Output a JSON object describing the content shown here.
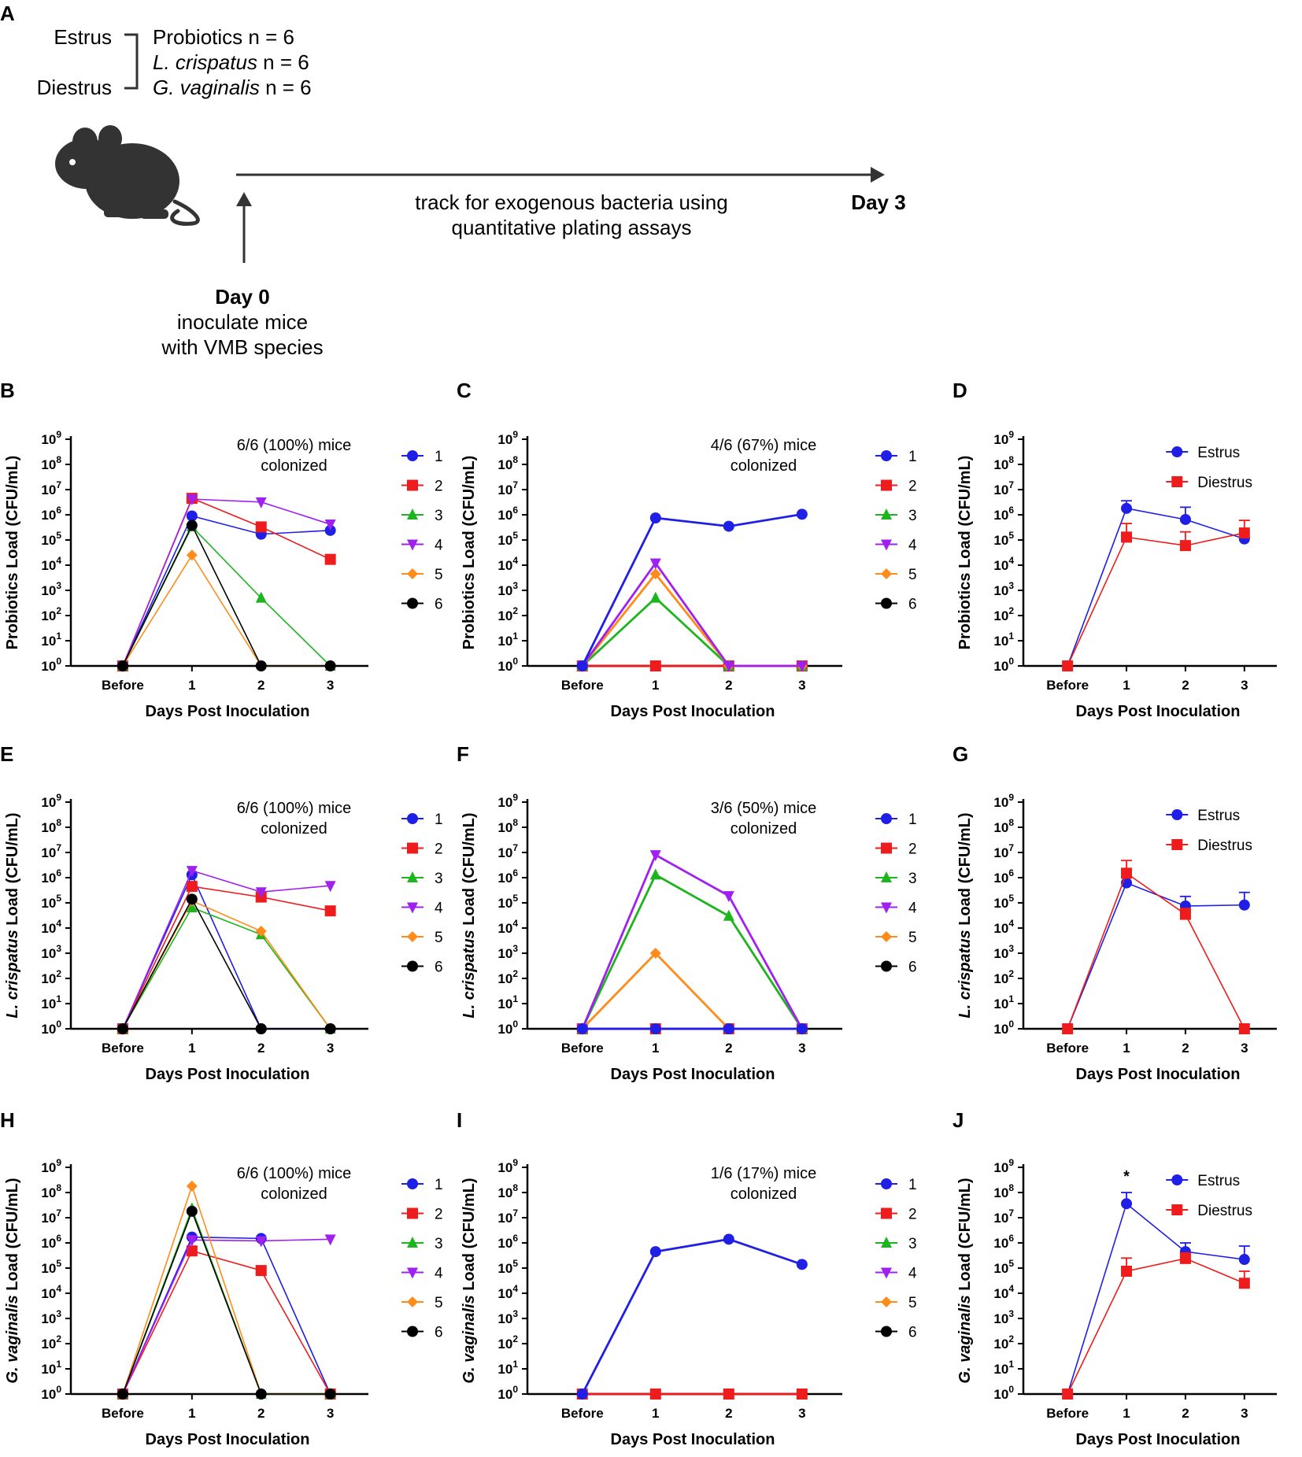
{
  "colors": {
    "s1": "#1f1fe6",
    "s2": "#ee1c1c",
    "s3": "#1db51d",
    "s4": "#a020f0",
    "s5": "#ff8c1a",
    "s6": "#000000",
    "estrus": "#1f1fe6",
    "diestrus": "#ee1c1c",
    "axis": "#000000",
    "mouse": "#333333"
  },
  "schematic": {
    "panel": "A",
    "estrus": "Estrus",
    "diestrus": "Diestrus",
    "group_probiotics": "Probiotics n = 6",
    "group_lcrispatus_species": "L. crispatus",
    "group_lcrispatus_n": " n = 6",
    "group_gvaginalis_species": "G. vaginalis",
    "group_gvaginalis_n": " n = 6",
    "track_line1": "track for exogenous bacteria using",
    "track_line2": "quantitative plating assays",
    "day3": "Day 3",
    "day0": "Day 0",
    "day0_line1": "inoculate mice",
    "day0_line2": "with VMB species",
    "mouse_icon": "mouse-icon"
  },
  "chart_data": [
    {
      "panel": "B",
      "type": "line",
      "ylabel": "Probiotics Load (CFU/mL)",
      "ylabel_italic": "",
      "xlabel": "Days Post Inoculation",
      "categories": [
        "Before",
        "1",
        "2",
        "3"
      ],
      "y_scale": "log10",
      "ylim": [
        1,
        1000000000
      ],
      "annotation": [
        "6/6 (100%) mice",
        "colonized"
      ],
      "legend": [
        "1",
        "2",
        "3",
        "4",
        "5",
        "6"
      ],
      "series": [
        {
          "name": "1",
          "color": "s1",
          "marker": "circle",
          "values": [
            1,
            900000,
            170000,
            240000
          ]
        },
        {
          "name": "2",
          "color": "s2",
          "marker": "square",
          "values": [
            1,
            4500000,
            330000,
            17000
          ]
        },
        {
          "name": "3",
          "color": "s3",
          "marker": "triangle-up",
          "values": [
            1,
            340000,
            500,
            1
          ]
        },
        {
          "name": "4",
          "color": "s4",
          "marker": "triangle-down",
          "values": [
            1,
            4200000,
            3200000,
            420000
          ]
        },
        {
          "name": "5",
          "color": "s5",
          "marker": "diamond",
          "values": [
            1,
            25000,
            1,
            1
          ]
        },
        {
          "name": "6",
          "color": "s6",
          "marker": "circle",
          "values": [
            1,
            380000,
            1,
            1
          ]
        }
      ]
    },
    {
      "panel": "C",
      "type": "line",
      "ylabel": "Probiotics Load (CFU/mL)",
      "ylabel_italic": "",
      "xlabel": "Days Post Inoculation",
      "categories": [
        "Before",
        "1",
        "2",
        "3"
      ],
      "y_scale": "log10",
      "ylim": [
        1,
        1000000000
      ],
      "annotation": [
        "4/6 (67%) mice",
        "colonized"
      ],
      "legend": [
        "1",
        "2",
        "3",
        "4",
        "5",
        "6"
      ],
      "series": [
        {
          "name": "6",
          "color": "s6",
          "marker": "circle",
          "values": [
            1,
            1,
            1,
            1
          ]
        },
        {
          "name": "2",
          "color": "s2",
          "marker": "square",
          "values": [
            1,
            1,
            1,
            1
          ]
        },
        {
          "name": "3",
          "color": "s3",
          "marker": "triangle-up",
          "values": [
            1,
            500,
            1,
            1
          ]
        },
        {
          "name": "5",
          "color": "s5",
          "marker": "diamond",
          "values": [
            1,
            4500,
            1,
            1
          ]
        },
        {
          "name": "4",
          "color": "s4",
          "marker": "triangle-down",
          "values": [
            1,
            12000,
            1,
            1
          ]
        },
        {
          "name": "1",
          "color": "s1",
          "marker": "circle",
          "values": [
            1,
            750000,
            350000,
            1050000
          ]
        }
      ]
    },
    {
      "panel": "D",
      "type": "line",
      "ylabel": "Probiotics Load (CFU/mL)",
      "ylabel_italic": "",
      "xlabel": "Days Post Inoculation",
      "categories": [
        "Before",
        "1",
        "2",
        "3"
      ],
      "y_scale": "log10",
      "ylim": [
        1,
        1000000000
      ],
      "legend": [
        "Estrus",
        "Diestrus"
      ],
      "series": [
        {
          "name": "Estrus",
          "color": "estrus",
          "marker": "circle",
          "values": [
            1,
            1800000,
            650000,
            110000
          ],
          "error_upper": [
            1,
            3600000,
            2000000,
            120000
          ]
        },
        {
          "name": "Diestrus",
          "color": "diestrus",
          "marker": "square",
          "values": [
            1,
            130000,
            60000,
            190000
          ],
          "error_upper": [
            1,
            450000,
            210000,
            600000
          ]
        }
      ]
    },
    {
      "panel": "E",
      "type": "line",
      "ylabel": " Load (CFU/mL)",
      "ylabel_italic": "L. crispatus",
      "xlabel": "Days Post Inoculation",
      "categories": [
        "Before",
        "1",
        "2",
        "3"
      ],
      "y_scale": "log10",
      "ylim": [
        1,
        1000000000
      ],
      "annotation": [
        "6/6 (100%) mice",
        "colonized"
      ],
      "legend": [
        "1",
        "2",
        "3",
        "4",
        "5",
        "6"
      ],
      "series": [
        {
          "name": "1",
          "color": "s1",
          "marker": "circle",
          "values": [
            1,
            1300000,
            1,
            1
          ]
        },
        {
          "name": "2",
          "color": "s2",
          "marker": "square",
          "values": [
            1,
            450000,
            170000,
            48000
          ]
        },
        {
          "name": "3",
          "color": "s3",
          "marker": "triangle-up",
          "values": [
            1,
            65000,
            5500,
            1
          ]
        },
        {
          "name": "4",
          "color": "s4",
          "marker": "triangle-down",
          "values": [
            1,
            1900000,
            270000,
            480000
          ]
        },
        {
          "name": "5",
          "color": "s5",
          "marker": "diamond",
          "values": [
            1,
            120000,
            7500,
            1
          ]
        },
        {
          "name": "6",
          "color": "s6",
          "marker": "circle",
          "values": [
            1,
            140000,
            1,
            1
          ]
        }
      ]
    },
    {
      "panel": "F",
      "type": "line",
      "ylabel": " Load (CFU/mL)",
      "ylabel_italic": "L. crispatus",
      "xlabel": "Days Post Inoculation",
      "categories": [
        "Before",
        "1",
        "2",
        "3"
      ],
      "y_scale": "log10",
      "ylim": [
        1,
        1000000000
      ],
      "annotation": [
        "3/6 (50%) mice",
        "colonized"
      ],
      "legend": [
        "1",
        "2",
        "3",
        "4",
        "5",
        "6"
      ],
      "series": [
        {
          "name": "6",
          "color": "s6",
          "marker": "circle",
          "values": [
            1,
            1,
            1,
            1
          ]
        },
        {
          "name": "2",
          "color": "s2",
          "marker": "square",
          "values": [
            1,
            1,
            1,
            1
          ]
        },
        {
          "name": "5",
          "color": "s5",
          "marker": "diamond",
          "values": [
            1,
            1000,
            1,
            1
          ]
        },
        {
          "name": "3",
          "color": "s3",
          "marker": "triangle-up",
          "values": [
            1,
            1300000,
            30000,
            1
          ]
        },
        {
          "name": "4",
          "color": "s4",
          "marker": "triangle-down",
          "values": [
            1,
            8000000,
            190000,
            1
          ]
        },
        {
          "name": "1",
          "color": "s1",
          "marker": "circle",
          "values": [
            1,
            1,
            1,
            1
          ]
        }
      ]
    },
    {
      "panel": "G",
      "type": "line",
      "ylabel": " Load (CFU/mL)",
      "ylabel_italic": "L. crispatus",
      "xlabel": "Days Post Inoculation",
      "categories": [
        "Before",
        "1",
        "2",
        "3"
      ],
      "y_scale": "log10",
      "ylim": [
        1,
        1000000000
      ],
      "legend": [
        "Estrus",
        "Diestrus"
      ],
      "series": [
        {
          "name": "Estrus",
          "color": "estrus",
          "marker": "circle",
          "values": [
            1,
            620000,
            75000,
            82000
          ],
          "error_upper": [
            1,
            1000000,
            180000,
            260000
          ]
        },
        {
          "name": "Diestrus",
          "color": "diestrus",
          "marker": "square",
          "values": [
            1,
            1500000,
            35000,
            1
          ],
          "error_upper": [
            1,
            4800000,
            60000,
            1
          ]
        }
      ]
    },
    {
      "panel": "H",
      "type": "line",
      "ylabel": " Load (CFU/mL)",
      "ylabel_italic": "G. vaginalis",
      "xlabel": "Days Post Inoculation",
      "categories": [
        "Before",
        "1",
        "2",
        "3"
      ],
      "y_scale": "log10",
      "ylim": [
        1,
        1000000000
      ],
      "annotation": [
        "6/6 (100%) mice",
        "colonized"
      ],
      "legend": [
        "1",
        "2",
        "3",
        "4",
        "5",
        "6"
      ],
      "series": [
        {
          "name": "1",
          "color": "s1",
          "marker": "circle",
          "values": [
            1,
            1700000,
            1500000,
            1
          ]
        },
        {
          "name": "2",
          "color": "s2",
          "marker": "square",
          "values": [
            1,
            480000,
            80000,
            1
          ]
        },
        {
          "name": "3",
          "color": "s3",
          "marker": "triangle-up",
          "values": [
            1,
            23000000,
            1,
            1
          ]
        },
        {
          "name": "4",
          "color": "s4",
          "marker": "triangle-down",
          "values": [
            1,
            1300000,
            1200000,
            1400000
          ]
        },
        {
          "name": "5",
          "color": "s5",
          "marker": "diamond",
          "values": [
            1,
            180000000,
            1,
            1
          ]
        },
        {
          "name": "6",
          "color": "s6",
          "marker": "circle",
          "values": [
            1,
            18000000,
            1,
            1
          ]
        }
      ]
    },
    {
      "panel": "I",
      "type": "line",
      "ylabel": " Load (CFU/mL)",
      "ylabel_italic": "G. vaginalis",
      "xlabel": "Days Post Inoculation",
      "categories": [
        "Before",
        "1",
        "2",
        "3"
      ],
      "y_scale": "log10",
      "ylim": [
        1,
        1000000000
      ],
      "annotation": [
        "1/6 (17%) mice",
        "colonized"
      ],
      "legend": [
        "1",
        "2",
        "3",
        "4",
        "5",
        "6"
      ],
      "series": [
        {
          "name": "6",
          "color": "s6",
          "marker": "circle",
          "values": [
            1,
            1,
            1,
            1
          ]
        },
        {
          "name": "2",
          "color": "s2",
          "marker": "square",
          "values": [
            1,
            1,
            1,
            1
          ]
        },
        {
          "name": "1",
          "color": "s1",
          "marker": "circle",
          "values": [
            1,
            450000,
            1400000,
            140000
          ]
        }
      ]
    },
    {
      "panel": "J",
      "type": "line",
      "ylabel": " Load (CFU/mL)",
      "ylabel_italic": "G. vaginalis",
      "xlabel": "Days Post Inoculation",
      "categories": [
        "Before",
        "1",
        "2",
        "3"
      ],
      "y_scale": "log10",
      "ylim": [
        1,
        1000000000
      ],
      "legend": [
        "Estrus",
        "Diestrus"
      ],
      "significance": [
        {
          "category": "1",
          "label": "*"
        }
      ],
      "series": [
        {
          "name": "Estrus",
          "color": "estrus",
          "marker": "circle",
          "values": [
            1,
            36000000,
            450000,
            220000
          ],
          "error_upper": [
            1,
            100000000,
            1000000,
            750000
          ]
        },
        {
          "name": "Diestrus",
          "color": "diestrus",
          "marker": "square",
          "values": [
            1,
            75000,
            240000,
            25000
          ],
          "error_upper": [
            1,
            250000,
            400000,
            75000
          ]
        }
      ]
    }
  ]
}
